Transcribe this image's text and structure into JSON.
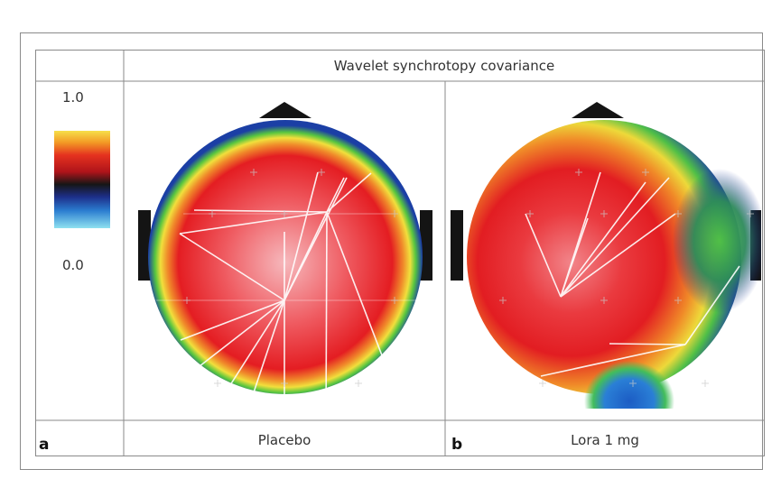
{
  "title": "Wavelet synchrotopy covariance",
  "color_scale": {
    "max_label": "1.0",
    "min_label": "0.0"
  },
  "panels": [
    {
      "letter": "a",
      "caption": "Placebo"
    },
    {
      "letter": "b",
      "caption": "Lora 1 mg"
    }
  ],
  "colors": {
    "frame": "#8a8a8a",
    "red": "#e8161b",
    "yellow": "#f7e23a",
    "green": "#56c23f",
    "blue": "#1f4fb0",
    "dark": "#1a1a1a"
  }
}
